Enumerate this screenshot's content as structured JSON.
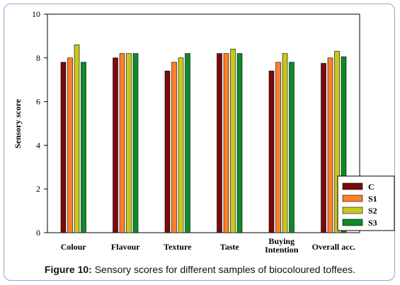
{
  "caption": {
    "label": "Figure 10:",
    "text": " Sensory scores for different samples of biocoloured toffees."
  },
  "chart_data": {
    "type": "bar",
    "title": "",
    "xlabel": "",
    "ylabel": "Sensory score",
    "ylim": [
      0,
      10
    ],
    "yticks": [
      0,
      2,
      4,
      6,
      8,
      10
    ],
    "grid": false,
    "legend_position": "bottom-right",
    "categories": [
      "Colour",
      "Flavour",
      "Texture",
      "Taste",
      "Buying Intention",
      "Overall acc."
    ],
    "category_lines": [
      [
        "Colour"
      ],
      [
        "Flavour"
      ],
      [
        "Texture"
      ],
      [
        "Taste"
      ],
      [
        "Buying",
        "Intention"
      ],
      [
        "Overall acc."
      ]
    ],
    "series": [
      {
        "name": "C",
        "color": "#7a0a0a",
        "values": [
          7.8,
          8.0,
          7.4,
          8.2,
          7.4,
          7.75
        ]
      },
      {
        "name": "S1",
        "color": "#ff7f2a",
        "values": [
          8.0,
          8.2,
          7.8,
          8.2,
          7.8,
          8.0
        ]
      },
      {
        "name": "S2",
        "color": "#c8c81e",
        "values": [
          8.6,
          8.2,
          8.0,
          8.4,
          8.2,
          8.3
        ]
      },
      {
        "name": "S3",
        "color": "#0e8a2a",
        "values": [
          7.8,
          8.2,
          8.2,
          8.2,
          7.8,
          8.05
        ]
      }
    ]
  }
}
